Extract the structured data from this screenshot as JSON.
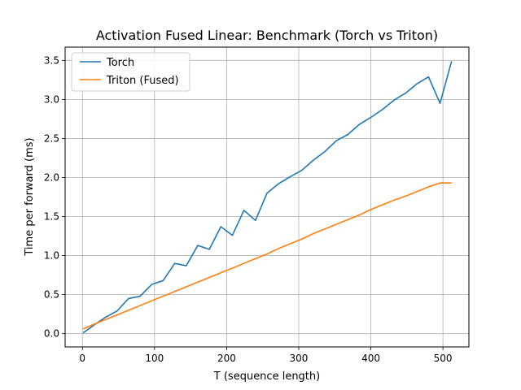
{
  "chart_data": {
    "type": "line",
    "title": "Activation Fused Linear: Benchmark (Torch vs Triton)",
    "xlabel": "T (sequence length)",
    "ylabel": "Time per forward (ms)",
    "xlim": [
      -24,
      536
    ],
    "ylim": [
      -0.17,
      3.67
    ],
    "xticks": [
      0,
      100,
      200,
      300,
      400,
      500
    ],
    "yticks": [
      0.0,
      0.5,
      1.0,
      1.5,
      2.0,
      2.5,
      3.0,
      3.5
    ],
    "xtick_labels": [
      "0",
      "100",
      "200",
      "300",
      "400",
      "500"
    ],
    "ytick_labels": [
      "0.0",
      "0.5",
      "1.0",
      "1.5",
      "2.0",
      "2.5",
      "3.0",
      "3.5"
    ],
    "grid": true,
    "legend_position": "upper-left",
    "series": [
      {
        "name": "Torch",
        "color": "#1f77b4",
        "x": [
          1,
          16,
          32,
          48,
          64,
          80,
          96,
          112,
          128,
          144,
          160,
          176,
          192,
          208,
          224,
          240,
          256,
          272,
          288,
          304,
          320,
          336,
          352,
          368,
          384,
          400,
          416,
          432,
          448,
          464,
          480,
          496,
          512
        ],
        "y": [
          0.01,
          0.11,
          0.21,
          0.29,
          0.45,
          0.48,
          0.63,
          0.68,
          0.9,
          0.87,
          1.13,
          1.08,
          1.37,
          1.26,
          1.58,
          1.45,
          1.8,
          1.92,
          2.01,
          2.09,
          2.22,
          2.33,
          2.47,
          2.55,
          2.68,
          2.77,
          2.87,
          2.99,
          3.08,
          3.2,
          3.29,
          2.95,
          3.49
        ]
      },
      {
        "name": "Triton (Fused)",
        "color": "#ff7f0e",
        "x": [
          1,
          16,
          32,
          48,
          64,
          80,
          96,
          112,
          128,
          144,
          160,
          176,
          192,
          208,
          224,
          240,
          256,
          272,
          288,
          304,
          320,
          336,
          352,
          368,
          384,
          400,
          416,
          432,
          448,
          464,
          480,
          496,
          512
        ],
        "y": [
          0.06,
          0.12,
          0.18,
          0.24,
          0.3,
          0.36,
          0.42,
          0.48,
          0.54,
          0.6,
          0.66,
          0.72,
          0.78,
          0.84,
          0.9,
          0.96,
          1.02,
          1.09,
          1.15,
          1.21,
          1.28,
          1.34,
          1.4,
          1.46,
          1.52,
          1.59,
          1.65,
          1.71,
          1.76,
          1.82,
          1.88,
          1.93,
          1.93
        ]
      }
    ]
  }
}
